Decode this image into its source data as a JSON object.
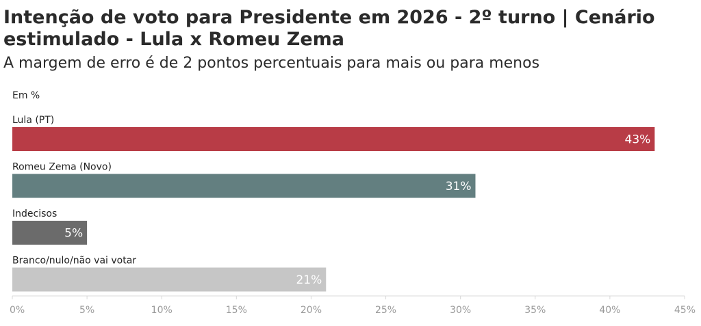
{
  "chart_data": {
    "type": "bar",
    "orientation": "horizontal",
    "title": "Intenção de voto para Presidente em 2026 - 2º turno | Cenário estimulado - Lula x Romeu Zema",
    "subtitle": "A margem de erro é de 2 pontos percentuais para mais ou para menos",
    "unit_note": "Em %",
    "categories": [
      "Lula (PT)",
      "Romeu Zema (Novo)",
      "Indecisos",
      "Branco/nulo/não vai votar"
    ],
    "values": [
      43,
      31,
      5,
      21
    ],
    "data_labels": [
      "43%",
      "31%",
      "5%",
      "21%"
    ],
    "colors": [
      "#b83c46",
      "#637f80",
      "#6b6b6b",
      "#c6c6c6"
    ],
    "xlim": [
      0,
      45
    ],
    "x_ticks": [
      0,
      5,
      10,
      15,
      20,
      25,
      30,
      35,
      40,
      45
    ],
    "x_tick_labels": [
      "0%",
      "5%",
      "10%",
      "15%",
      "20%",
      "25%",
      "30%",
      "35%",
      "40%",
      "45%"
    ],
    "grid": false,
    "legend": "none"
  }
}
